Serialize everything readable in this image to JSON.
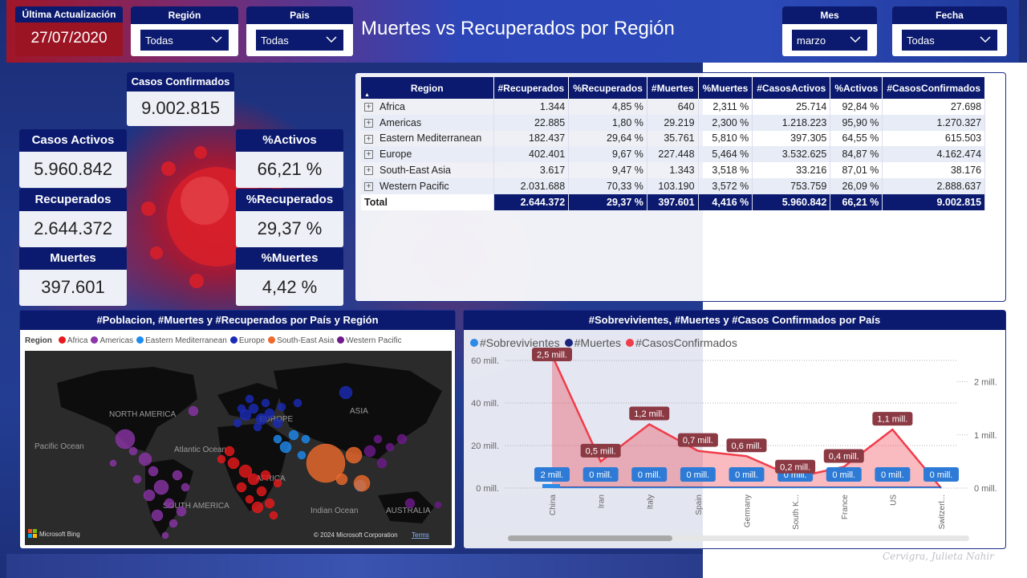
{
  "header": {
    "title": "Muertes vs Recuperados por Región",
    "last_update_label": "Última Actualización",
    "last_update_value": "27/07/2020",
    "slicers": {
      "region": {
        "label": "Región",
        "value": "Todas"
      },
      "pais": {
        "label": "Pais",
        "value": "Todas"
      },
      "mes": {
        "label": "Mes",
        "value": "marzo"
      },
      "fecha": {
        "label": "Fecha",
        "value": "Todas"
      }
    }
  },
  "kpis": {
    "casos_confirmados": {
      "label": "Casos Confirmados",
      "value": "9.002.815"
    },
    "casos_activos": {
      "label": "Casos Activos",
      "value": "5.960.842"
    },
    "recuperados": {
      "label": "Recuperados",
      "value": "2.644.372"
    },
    "muertes": {
      "label": "Muertes",
      "value": "397.601"
    },
    "pct_activos": {
      "label": "%Activos",
      "value": "66,21 %"
    },
    "pct_recuperados": {
      "label": "%Recuperados",
      "value": "29,37 %"
    },
    "pct_muertes": {
      "label": "%Muertes",
      "value": "4,42 %"
    }
  },
  "table": {
    "columns": [
      "Region",
      "#Recuperados",
      "%Recuperados",
      "#Muertes",
      "%Muertes",
      "#CasosActivos",
      "%Activos",
      "#CasosConfirmados"
    ],
    "rows": [
      [
        "Africa",
        "1.344",
        "4,85 %",
        "640",
        "2,311 %",
        "25.714",
        "92,84 %",
        "27.698"
      ],
      [
        "Americas",
        "22.885",
        "1,80 %",
        "29.219",
        "2,300 %",
        "1.218.223",
        "95,90 %",
        "1.270.327"
      ],
      [
        "Eastern Mediterranean",
        "182.437",
        "29,64 %",
        "35.761",
        "5,810 %",
        "397.305",
        "64,55 %",
        "615.503"
      ],
      [
        "Europe",
        "402.401",
        "9,67 %",
        "227.448",
        "5,464 %",
        "3.532.625",
        "84,87 %",
        "4.162.474"
      ],
      [
        "South-East Asia",
        "3.617",
        "9,47 %",
        "1.343",
        "3,518 %",
        "33.216",
        "87,01 %",
        "38.176"
      ],
      [
        "Western Pacific",
        "2.031.688",
        "70,33 %",
        "103.190",
        "3,572 %",
        "753.759",
        "26,09 %",
        "2.888.637"
      ]
    ],
    "total": [
      "Total",
      "2.644.372",
      "29,37 %",
      "397.601",
      "4,416 %",
      "5.960.842",
      "66,21 %",
      "9.002.815"
    ],
    "expander_symbol": "+"
  },
  "map": {
    "title": "#Poblacion, #Muertes y #Recuperados por País y Región",
    "legend_title": "Region",
    "legend": [
      {
        "name": "Africa",
        "color": "#e8191d"
      },
      {
        "name": "Americas",
        "color": "#8b35a8"
      },
      {
        "name": "Eastern Mediterranean",
        "color": "#1e8bf0"
      },
      {
        "name": "Europe",
        "color": "#1a2bb5"
      },
      {
        "name": "South-East Asia",
        "color": "#ee6a2c"
      },
      {
        "name": "Western Pacific",
        "color": "#6e1a8c"
      }
    ],
    "labels": {
      "north_america": "NORTH AMERICA",
      "europe": "EUROPE",
      "asia": "ASIA",
      "pacific_ocean": "Pacific Ocean",
      "atlantic_ocean": "Atlantic Ocean",
      "africa": "AFRICA",
      "south_america": "SOUTH AMERICA",
      "indian_ocean": "Indian Ocean",
      "australia": "AUSTRALIA"
    },
    "bing_logo": "Microsoft Bing",
    "copyright": "© 2024 Microsoft Corporation",
    "terms": "Terms"
  },
  "chart_data": {
    "type": "line",
    "title": "#Sobrevivientes, #Muertes y #Casos Confirmados por País",
    "categories": [
      "China",
      "Iran",
      "Italy",
      "Spain",
      "Germany",
      "South K...",
      "France",
      "US",
      "Switzerl..."
    ],
    "series": [
      {
        "name": "#Sobrevivientes",
        "color": "#2d8ae6",
        "axis": "left",
        "values": [
          2000000,
          5000,
          5000,
          5000,
          5000,
          5000,
          5000,
          5000,
          5000
        ],
        "labels": [
          "2 mill.",
          "0 mill.",
          "0 mill.",
          "0 mill.",
          "0 mill.",
          "0 mill.",
          "0 mill.",
          "0 mill.",
          "0 mill."
        ]
      },
      {
        "name": "#Muertes",
        "color": "#1a237e",
        "axis": "left",
        "values": [
          50000,
          20000,
          20000,
          20000,
          20000,
          20000,
          20000,
          20000,
          20000
        ]
      },
      {
        "name": "#CasosConfirmados",
        "color": "#ef3d4a",
        "axis": "right",
        "values": [
          2500000,
          500000,
          1200000,
          700000,
          600000,
          200000,
          400000,
          1100000,
          0
        ],
        "labels": [
          "2,5 mill.",
          "0,5 mill.",
          "1,2 mill.",
          "0,7 mill.",
          "0,6 mill.",
          "0,2 mill.",
          "0,4 mill.",
          "1,1 mill.",
          ""
        ]
      }
    ],
    "y_left": {
      "ticks": [
        "60 mill.",
        "40 mill.",
        "20 mill.",
        "0 mill."
      ],
      "values": [
        60000000,
        40000000,
        20000000,
        0
      ],
      "range": [
        0,
        60000000
      ]
    },
    "y_right": {
      "ticks": [
        "2 mill.",
        "1 mill.",
        "0 mill."
      ],
      "values": [
        2000000,
        1000000,
        0
      ],
      "range": [
        0,
        2400000
      ]
    },
    "legend_position": "top-left",
    "grid": true
  },
  "signature": "Cervigra, Julieta Nahir"
}
